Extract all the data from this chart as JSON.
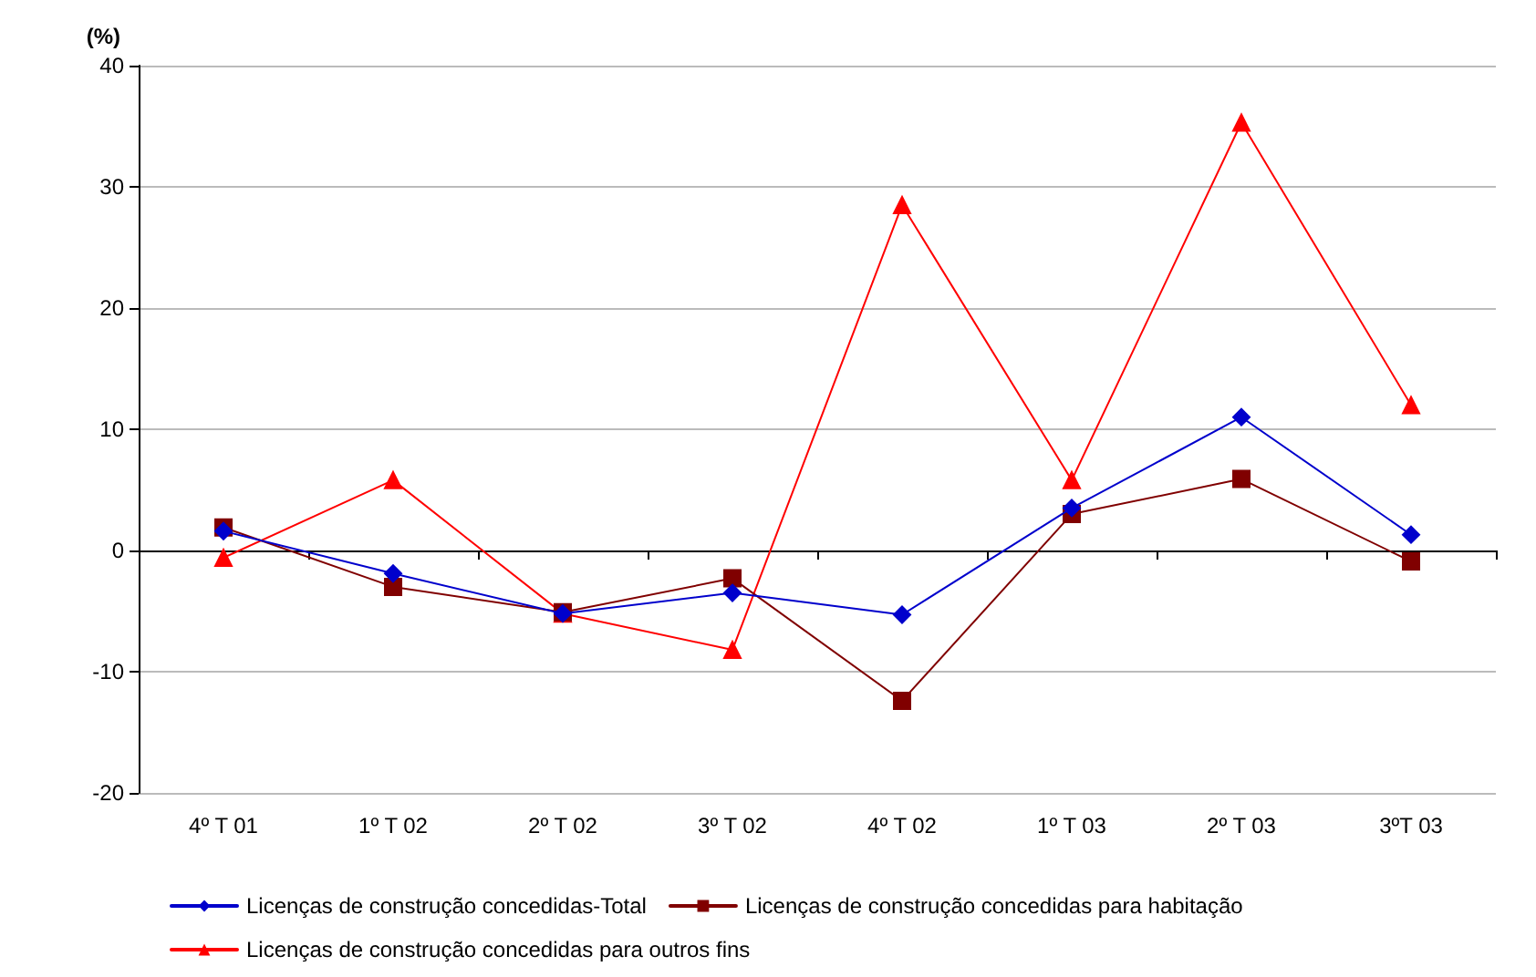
{
  "chart_data": {
    "type": "line",
    "ylabel": "(%)",
    "categories": [
      "4º T 01",
      "1º T 02",
      "2º T 02",
      "3º T 02",
      "4º T 02",
      "1º T 03",
      "2º T 03",
      "3ºT 03"
    ],
    "series": [
      {
        "name": "Licenças de construção concedidas-Total",
        "color": "#0000cc",
        "marker": "diamond",
        "values": [
          1.6,
          -1.9,
          -5.2,
          -3.5,
          -5.3,
          3.5,
          11.0,
          1.3
        ]
      },
      {
        "name": "Licenças de construção concedidas para habitação",
        "color": "#800000",
        "marker": "square",
        "values": [
          1.9,
          -3.0,
          -5.1,
          -2.3,
          -12.4,
          3.0,
          5.9,
          -0.9
        ]
      },
      {
        "name": "Licenças de construção concedidas para outros fins",
        "color": "#ff0000",
        "marker": "triangle",
        "values": [
          -0.6,
          5.8,
          -5.2,
          -8.2,
          28.5,
          5.8,
          35.3,
          12.0
        ]
      }
    ],
    "ylim": [
      -20,
      40
    ],
    "yticks": [
      -20,
      -10,
      0,
      10,
      20,
      30,
      40
    ],
    "grid": "y",
    "legend": "bottom",
    "line_style": "solid"
  }
}
